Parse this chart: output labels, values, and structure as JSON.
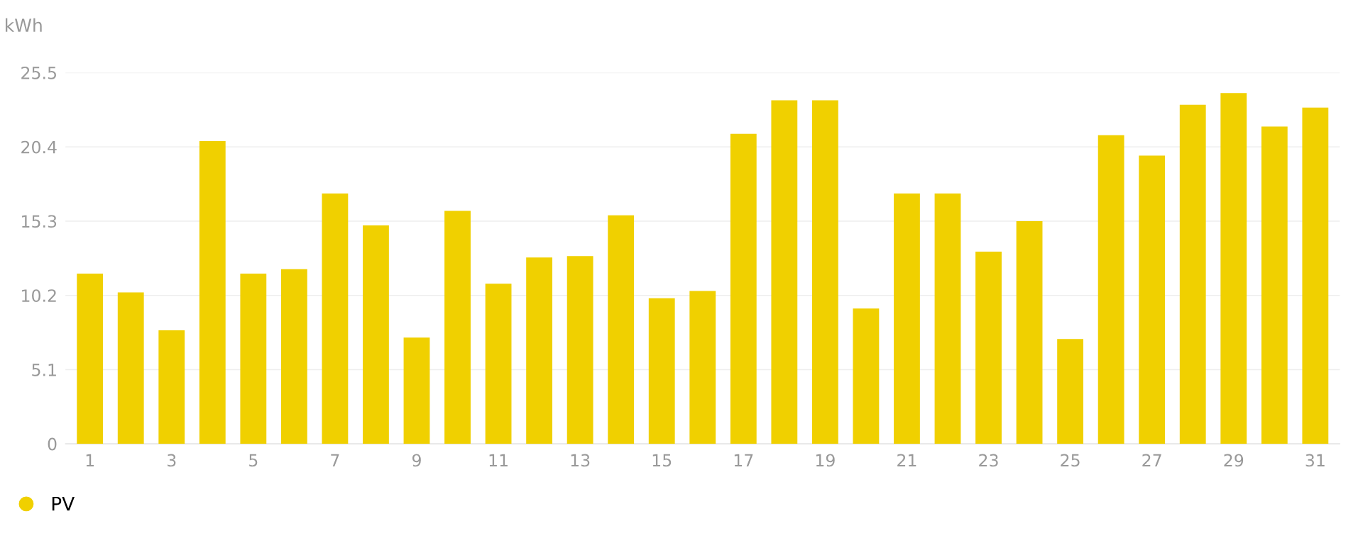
{
  "chart_data": {
    "type": "bar",
    "ylabel": "kWh",
    "categories": [
      "1",
      null,
      "3",
      null,
      "5",
      null,
      "7",
      null,
      "9",
      null,
      "11",
      null,
      "13",
      null,
      "15",
      null,
      "17",
      null,
      "19",
      null,
      "21",
      null,
      "23",
      null,
      "25",
      null,
      "27",
      null,
      "29",
      null,
      "31"
    ],
    "series": [
      {
        "name": "PV",
        "color": "#f0d000",
        "values": [
          11.7,
          10.4,
          7.8,
          20.8,
          11.7,
          12.0,
          17.2,
          15.0,
          7.3,
          16.0,
          11.0,
          12.8,
          12.9,
          15.7,
          10.0,
          10.5,
          21.3,
          23.6,
          23.6,
          9.3,
          17.2,
          17.2,
          13.2,
          15.3,
          7.2,
          21.2,
          19.8,
          23.3,
          24.1,
          21.8,
          23.1
        ]
      }
    ],
    "ylim": [
      0,
      25.5
    ],
    "yticks": [
      0,
      5.1,
      10.2,
      15.3,
      20.4,
      25.5
    ],
    "grid": "y",
    "legend": "bottom left"
  }
}
